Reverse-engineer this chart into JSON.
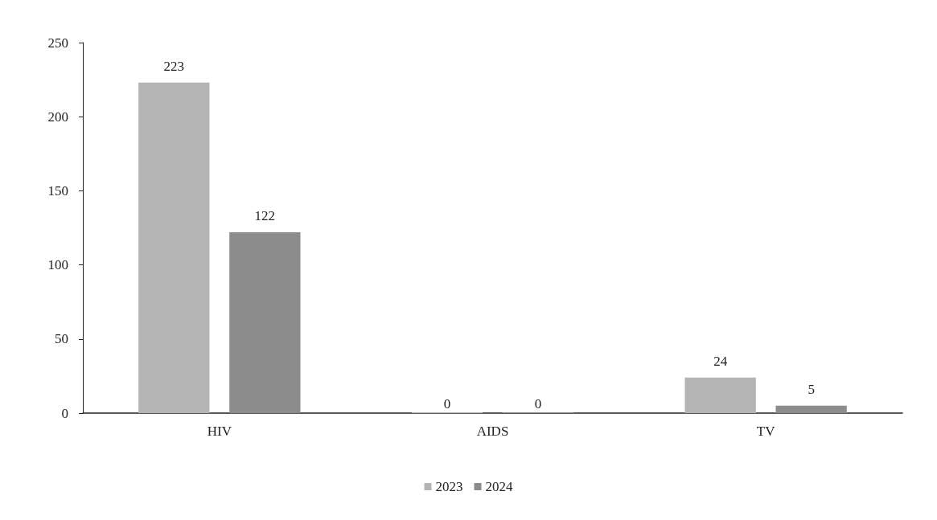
{
  "chart_data": {
    "type": "bar",
    "categories": [
      "HIV",
      "AIDS",
      "TV"
    ],
    "series": [
      {
        "name": "2023",
        "color": "#b4b4b4",
        "values": [
          223,
          0,
          24
        ]
      },
      {
        "name": "2024",
        "color": "#8c8c8c",
        "values": [
          122,
          0,
          5
        ]
      }
    ],
    "ylim": [
      0,
      250
    ],
    "yticks": [
      0,
      50,
      100,
      150,
      200,
      250
    ],
    "grid": false,
    "legend": "bottom",
    "data_labels": true
  }
}
